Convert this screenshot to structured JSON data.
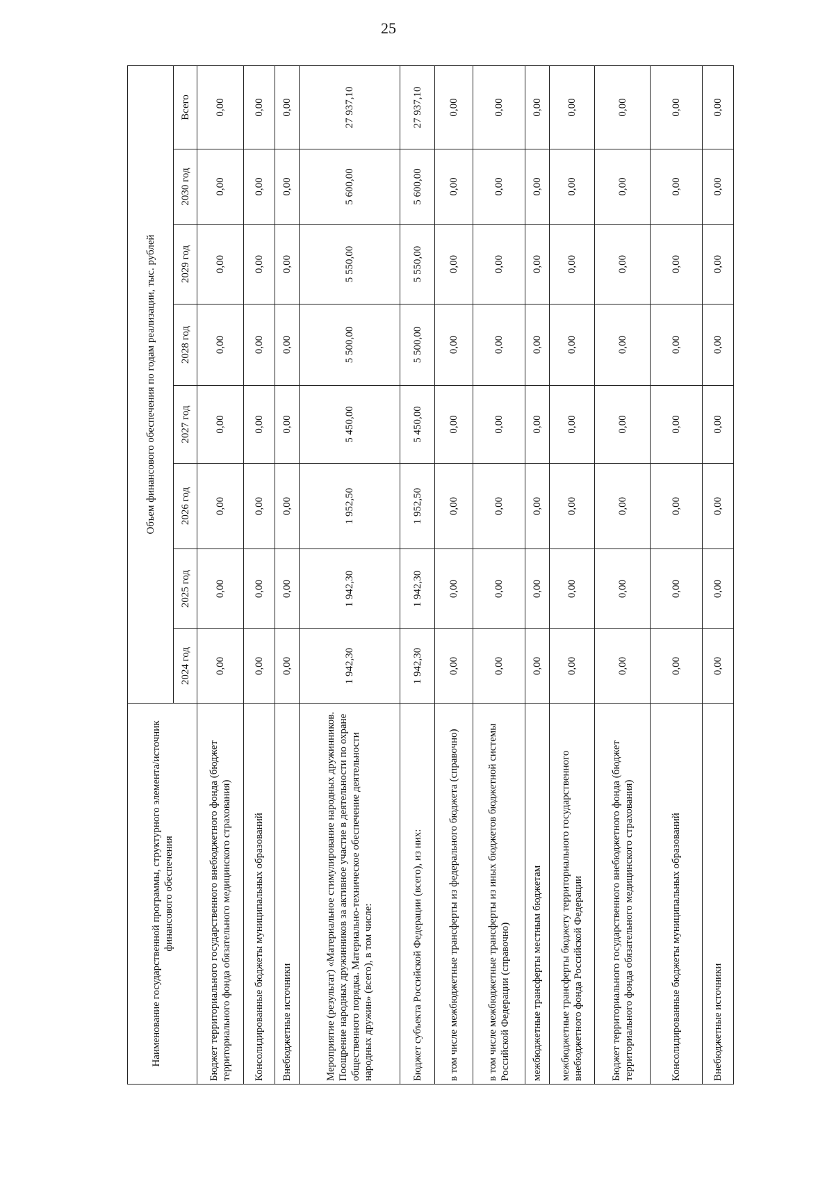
{
  "page_number": "25",
  "table": {
    "header_name": "Наименование государственной программы, структурного элемента/источник финансового обеспечения",
    "header_group": "Объем финансового обеспечения по годам реализации, тыс. рублей",
    "columns": [
      "2024 год",
      "2025 год",
      "2026 год",
      "2027 год",
      "2028 год",
      "2029 год",
      "2030 год",
      "Всего"
    ],
    "rows": [
      {
        "name": "Бюджет территориального государственного внебюджетного фонда (бюджет территориального фонда обязательного медицинского страхования)",
        "values": [
          "0,00",
          "0,00",
          "0,00",
          "0,00",
          "0,00",
          "0,00",
          "0,00",
          "0,00"
        ]
      },
      {
        "name": "Консолидированные бюджеты муниципальных образований",
        "values": [
          "0,00",
          "0,00",
          "0,00",
          "0,00",
          "0,00",
          "0,00",
          "0,00",
          "0,00"
        ]
      },
      {
        "name": "Внебюджетные источники",
        "values": [
          "0,00",
          "0,00",
          "0,00",
          "0,00",
          "0,00",
          "0,00",
          "0,00",
          "0,00"
        ]
      },
      {
        "name": "Мероприятие (результат) «Материальное стимулирование народных дружинников. Поощрение народных дружинников за активное участие в деятельности по охране общественного порядка. Материально-техническое обеспечение деятельности народных дружин» (всего), в том числе:",
        "values": [
          "1 942,30",
          "1 942,30",
          "1 952,50",
          "5 450,00",
          "5 500,00",
          "5 550,00",
          "5 600,00",
          "27 937,10"
        ]
      },
      {
        "name": "Бюджет субъекта Российской Федерации (всего), из них:",
        "values": [
          "1 942,30",
          "1 942,30",
          "1 952,50",
          "5 450,00",
          "5 500,00",
          "5 550,00",
          "5 600,00",
          "27 937,10"
        ]
      },
      {
        "name": "в том числе межбюджетные трансферты из федерального бюджета (справочно)",
        "values": [
          "0,00",
          "0,00",
          "0,00",
          "0,00",
          "0,00",
          "0,00",
          "0,00",
          "0,00"
        ]
      },
      {
        "name": "в том числе межбюджетные трансферты из иных бюджетов бюджетной системы Российской Федерации (справочно)",
        "values": [
          "0,00",
          "0,00",
          "0,00",
          "0,00",
          "0,00",
          "0,00",
          "0,00",
          "0,00"
        ]
      },
      {
        "name": "межбюджетные трансферты местным бюджетам",
        "values": [
          "0,00",
          "0,00",
          "0,00",
          "0,00",
          "0,00",
          "0,00",
          "0,00",
          "0,00"
        ]
      },
      {
        "name": "межбюджетные трансферты бюджету территориального государственного внебюджетного фонда Российской Федерации",
        "values": [
          "0,00",
          "0,00",
          "0,00",
          "0,00",
          "0,00",
          "0,00",
          "0,00",
          "0,00"
        ]
      },
      {
        "name": "Бюджет территориального государственного внебюджетного фонда (бюджет территориального фонда обязательного медицинского страхования)",
        "values": [
          "0,00",
          "0,00",
          "0,00",
          "0,00",
          "0,00",
          "0,00",
          "0,00",
          "0,00"
        ]
      },
      {
        "name": "Консолидированные бюджеты муниципальных образований",
        "values": [
          "0,00",
          "0,00",
          "0,00",
          "0,00",
          "0,00",
          "0,00",
          "0,00",
          "0,00"
        ]
      },
      {
        "name": "Внебюджетные источники",
        "values": [
          "0,00",
          "0,00",
          "0,00",
          "0,00",
          "0,00",
          "0,00",
          "0,00",
          "0,00"
        ]
      }
    ]
  }
}
